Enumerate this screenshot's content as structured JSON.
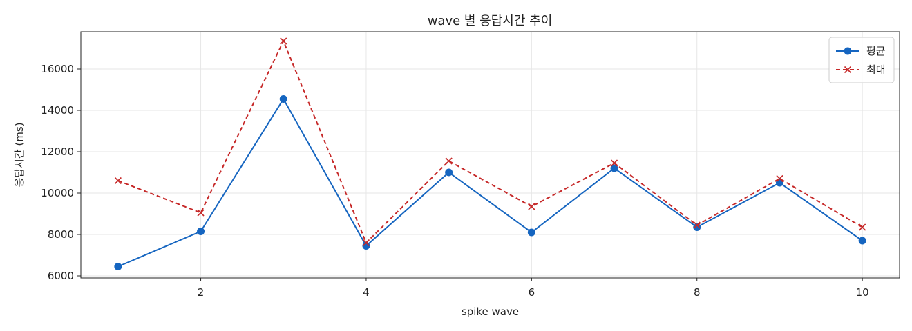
{
  "chart_data": {
    "type": "line",
    "title": "wave 별 응답시간 추이",
    "xlabel": "spike wave",
    "ylabel": "응답시간 (ms)",
    "x": [
      1,
      2,
      3,
      4,
      5,
      6,
      7,
      8,
      9,
      10
    ],
    "xlim": [
      0.55,
      10.45
    ],
    "ylim": [
      5900,
      17800
    ],
    "xticks": [
      2,
      4,
      6,
      8,
      10
    ],
    "yticks": [
      6000,
      8000,
      10000,
      12000,
      14000,
      16000
    ],
    "grid": true,
    "legend_position": "top-right",
    "series": [
      {
        "name": "평균",
        "color": "#1565c0",
        "line_style": "solid",
        "marker": "circle",
        "values": [
          6450,
          8150,
          14550,
          7450,
          11000,
          8100,
          11200,
          8350,
          10500,
          7700
        ]
      },
      {
        "name": "최대",
        "color": "#c62828",
        "line_style": "dashed",
        "marker": "x",
        "values": [
          10600,
          9050,
          17350,
          7600,
          11550,
          9350,
          11450,
          8450,
          10700,
          8350
        ]
      }
    ]
  }
}
